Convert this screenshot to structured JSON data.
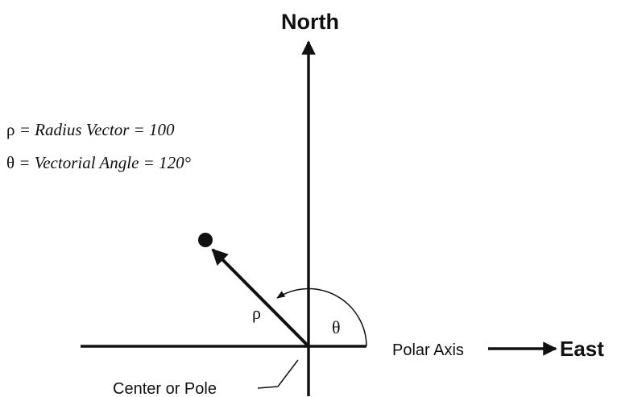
{
  "title": "North",
  "east_label": "East",
  "polar_axis_label": "Polar Axis",
  "pole_label": "Center or Pole",
  "rho_label": "ρ",
  "theta_label": "θ",
  "legend": [
    {
      "symbol": "ρ",
      "text": "= Radius Vector = 100"
    },
    {
      "symbol": "θ",
      "text": "= Vectorial Angle = 120°"
    }
  ]
}
